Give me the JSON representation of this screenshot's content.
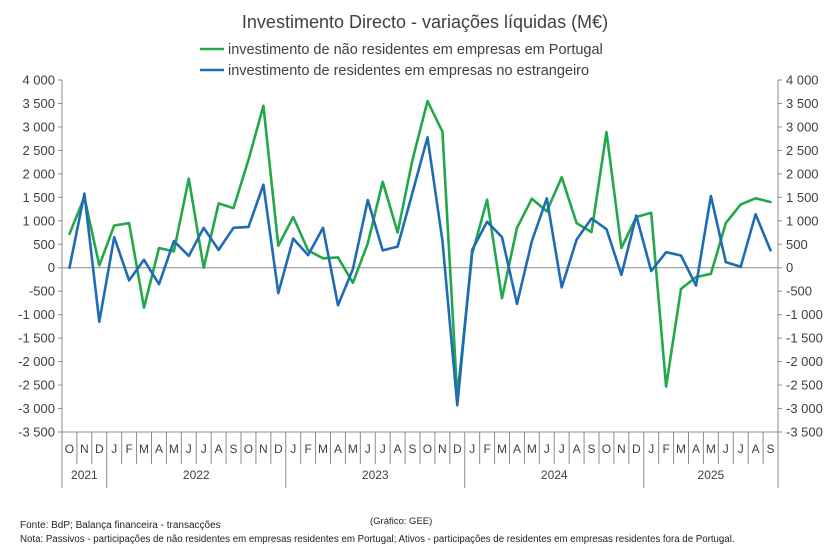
{
  "chart_data": {
    "type": "line",
    "title": "Investimento Directo - variações líquidas (M€)",
    "xlabel": "",
    "ylabel": "",
    "ylim": [
      -3500,
      4000
    ],
    "y_ticks": [
      4000,
      3500,
      3000,
      2500,
      2000,
      1500,
      1000,
      500,
      0,
      -500,
      -1000,
      -1500,
      -2000,
      -2500,
      -3000,
      -3500
    ],
    "y_tick_labels": [
      "4 000",
      "3 500",
      "3 000",
      "2 500",
      "2 000",
      "1 500",
      "1 000",
      "500",
      "0",
      "-500",
      "-1 000",
      "-1 500",
      "-2 000",
      "-2 500",
      "-3 000",
      "-3 500"
    ],
    "grid": false,
    "legend_position": "top-center",
    "x": [
      "O",
      "N",
      "D",
      "J",
      "F",
      "M",
      "A",
      "M",
      "J",
      "J",
      "A",
      "S",
      "O",
      "N",
      "D",
      "J",
      "F",
      "M",
      "A",
      "M",
      "J",
      "J",
      "A",
      "S",
      "O",
      "N",
      "D",
      "J",
      "F",
      "M",
      "A",
      "M",
      "J",
      "J",
      "A",
      "S",
      "O",
      "N",
      "D",
      "J",
      "F",
      "M",
      "A",
      "M",
      "J",
      "J",
      "A",
      "S"
    ],
    "years": [
      {
        "label": "2021",
        "start": 0,
        "end": 2
      },
      {
        "label": "2022",
        "start": 3,
        "end": 14
      },
      {
        "label": "2023",
        "start": 15,
        "end": 26
      },
      {
        "label": "2024",
        "start": 27,
        "end": 38
      },
      {
        "label": "2025",
        "start": 39,
        "end": 47
      }
    ],
    "series": [
      {
        "name": "investimento de não residentes em empresas em Portugal",
        "color": "#22A84A",
        "values": [
          720,
          1500,
          50,
          900,
          950,
          -850,
          420,
          350,
          1900,
          0,
          1370,
          1270,
          2300,
          3450,
          470,
          1080,
          370,
          200,
          220,
          -320,
          520,
          1830,
          750,
          2300,
          3550,
          2900,
          -2750,
          300,
          1450,
          -650,
          850,
          1470,
          1200,
          1930,
          950,
          760,
          2890,
          420,
          1080,
          1170,
          -2530,
          -450,
          -200,
          -130,
          950,
          1350,
          1480,
          1400
        ]
      },
      {
        "name": "investimento de residentes em empresas no estrangeiro",
        "color": "#1F6BB5",
        "values": [
          0,
          1580,
          -1150,
          650,
          -270,
          170,
          -350,
          570,
          250,
          850,
          380,
          850,
          870,
          1770,
          -540,
          620,
          270,
          850,
          -800,
          -30,
          1440,
          370,
          450,
          1600,
          2780,
          580,
          -2930,
          380,
          980,
          650,
          -770,
          570,
          1480,
          -420,
          600,
          1050,
          820,
          -150,
          1110,
          -70,
          330,
          260,
          -380,
          1530,
          120,
          20,
          1140,
          370
        ]
      }
    ]
  },
  "notes": {
    "source": "Fonte: BdP; Balança financeira - transacções",
    "credit": "(Gráfico:  GEE)",
    "footnote": "Nota: Passivos - participações de não residentes em empresas residentes em Portugal; Ativos - participações de residentes em empresas residentes fora de Portugal."
  }
}
